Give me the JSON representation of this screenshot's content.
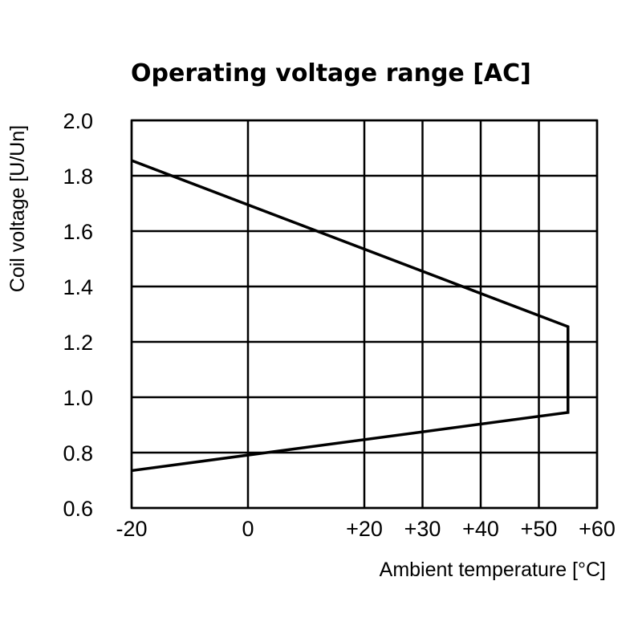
{
  "chart_data": {
    "type": "line",
    "title": "Operating voltage range [AC]",
    "xlabel": "Ambient temperature [°C]",
    "ylabel": "Coil voltage [U/Un]",
    "xlim": [
      -20,
      60
    ],
    "ylim": [
      0.6,
      2.0
    ],
    "x_ticks": [
      -20,
      0,
      20,
      30,
      40,
      50,
      60
    ],
    "x_tick_labels": [
      "-20",
      "0",
      "+20",
      "+30",
      "+40",
      "+50",
      "+60"
    ],
    "y_ticks": [
      0.6,
      0.8,
      1.0,
      1.2,
      1.4,
      1.6,
      1.8,
      2.0
    ],
    "y_tick_labels": [
      "0.6",
      "0.8",
      "1.0",
      "1.2",
      "1.4",
      "1.6",
      "1.8",
      "2.0"
    ],
    "grid": true,
    "series": [
      {
        "points": [
          {
            "x": -20,
            "y": 1.855
          },
          {
            "x": 55,
            "y": 1.255
          },
          {
            "x": 55,
            "y": 0.945
          },
          {
            "x": -20,
            "y": 0.735
          }
        ]
      }
    ],
    "colors": {
      "line": "#000000",
      "grid": "#000000",
      "background": "#ffffff"
    }
  }
}
